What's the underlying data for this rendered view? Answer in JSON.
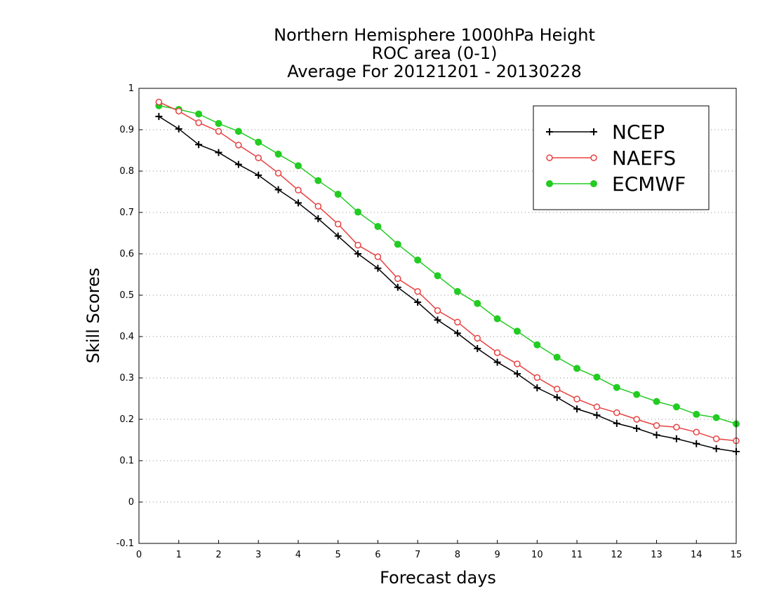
{
  "chart_data": {
    "type": "line",
    "title": [
      "Northern Hemisphere 1000hPa Height",
      "ROC area (0-1)",
      "Average For 20121201 - 20130228"
    ],
    "xlabel": "Forecast days",
    "ylabel": "Skill Scores",
    "xlim": [
      0,
      15
    ],
    "ylim": [
      -0.1,
      1
    ],
    "xticks": [
      "0",
      "1",
      "2",
      "3",
      "4",
      "5",
      "6",
      "7",
      "8",
      "9",
      "10",
      "11",
      "12",
      "13",
      "14",
      "15"
    ],
    "yticks": [
      "1",
      "0.9",
      "0.8",
      "0.7",
      "0.6",
      "0.5",
      "0.4",
      "0.3",
      "0.2",
      "0.1",
      "0",
      "-0.1"
    ],
    "grid": "horizontal dotted",
    "legend_position": "top-right",
    "x": [
      0.5,
      1,
      1.5,
      2,
      2.5,
      3,
      3.5,
      4,
      4.5,
      5,
      5.5,
      6,
      6.5,
      7,
      7.5,
      8,
      8.5,
      9,
      9.5,
      10,
      10.5,
      11,
      11.5,
      12,
      12.5,
      13,
      13.5,
      14,
      14.5,
      15
    ],
    "series": [
      {
        "name": "NCEP",
        "color": "#000000",
        "marker": "plus",
        "values": [
          0.932,
          0.902,
          0.864,
          0.845,
          0.816,
          0.79,
          0.755,
          0.723,
          0.685,
          0.643,
          0.6,
          0.565,
          0.519,
          0.483,
          0.44,
          0.408,
          0.371,
          0.338,
          0.31,
          0.276,
          0.253,
          0.225,
          0.21,
          0.19,
          0.178,
          0.162,
          0.153,
          0.141,
          0.129,
          0.122
        ]
      },
      {
        "name": "NAEFS",
        "color": "#e84040",
        "marker": "open-circle",
        "values": [
          0.967,
          0.945,
          0.917,
          0.896,
          0.863,
          0.832,
          0.795,
          0.754,
          0.715,
          0.672,
          0.621,
          0.593,
          0.54,
          0.509,
          0.463,
          0.435,
          0.396,
          0.361,
          0.334,
          0.301,
          0.273,
          0.249,
          0.23,
          0.216,
          0.2,
          0.185,
          0.181,
          0.169,
          0.153,
          0.148
        ]
      },
      {
        "name": "ECMWF",
        "color": "#22cc22",
        "marker": "filled-circle",
        "values": [
          0.958,
          0.949,
          0.938,
          0.915,
          0.896,
          0.87,
          0.841,
          0.813,
          0.777,
          0.744,
          0.701,
          0.666,
          0.623,
          0.585,
          0.547,
          0.509,
          0.48,
          0.443,
          0.413,
          0.38,
          0.35,
          0.323,
          0.302,
          0.277,
          0.26,
          0.243,
          0.23,
          0.212,
          0.204,
          0.189
        ]
      }
    ]
  }
}
